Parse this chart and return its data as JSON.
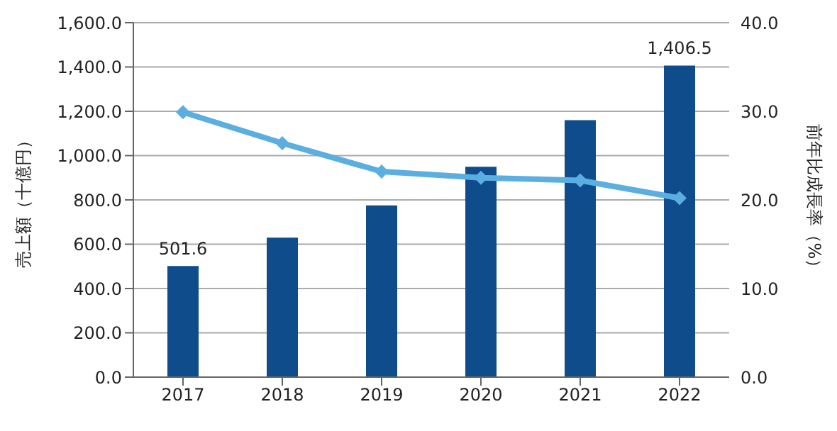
{
  "chart_data": {
    "type": "bar",
    "categories": [
      "2017",
      "2018",
      "2019",
      "2020",
      "2021",
      "2022"
    ],
    "ylabel": "売上額（十億円）",
    "y2label": "前年比成長率（%）",
    "series": [
      {
        "color": "#0e4c8c",
        "values": [
          501.6,
          630,
          775,
          950,
          1160,
          1406.5
        ],
        "value_labels": [
          "501.6",
          null,
          null,
          null,
          null,
          "1,406.5"
        ]
      },
      {
        "type": "line",
        "axis": "y2",
        "color": "#5aaee0",
        "marker": "diamond",
        "values": [
          29.9,
          26.4,
          23.2,
          22.5,
          22.2,
          20.2
        ]
      }
    ],
    "ylim": [
      0,
      1600
    ],
    "yticks": [
      {
        "value": 0,
        "label": "0.0"
      },
      {
        "value": 200,
        "label": "200.0"
      },
      {
        "value": 400,
        "label": "400.0"
      },
      {
        "value": 600,
        "label": "600.0"
      },
      {
        "value": 800,
        "label": "800.0"
      },
      {
        "value": 1000,
        "label": "1,000.0"
      },
      {
        "value": 1200,
        "label": "1,200.0"
      },
      {
        "value": 1400,
        "label": "1,400.0"
      },
      {
        "value": 1600,
        "label": "1,600.0"
      }
    ],
    "y2lim": [
      0,
      40
    ],
    "y2ticks": [
      {
        "value": 0,
        "label": "0.0"
      },
      {
        "value": 10,
        "label": "10.0"
      },
      {
        "value": 20,
        "label": "20.0"
      },
      {
        "value": 30,
        "label": "30.0"
      },
      {
        "value": 40,
        "label": "40.0"
      }
    ],
    "grid": "y",
    "legend": false
  }
}
